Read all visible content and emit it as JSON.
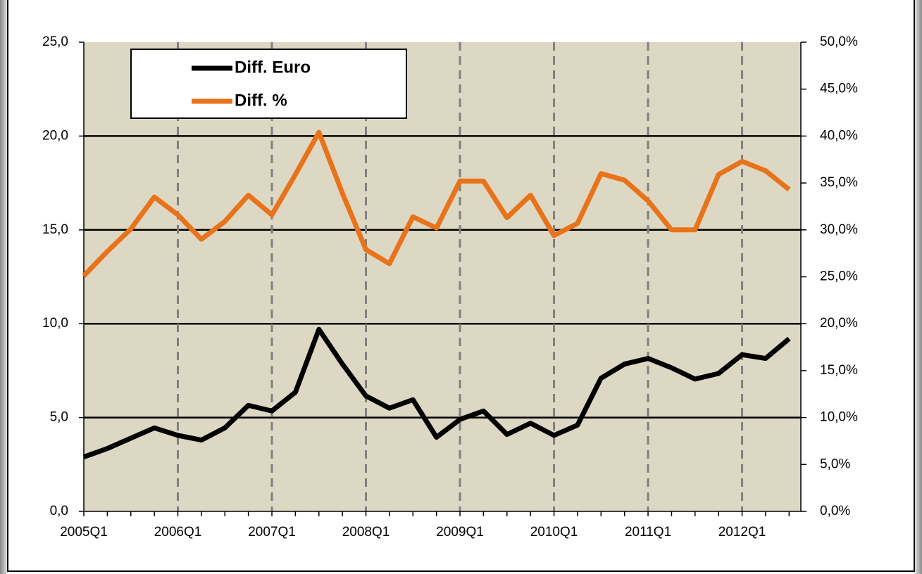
{
  "chart_data": {
    "type": "line",
    "categories": [
      "2005Q1",
      null,
      null,
      null,
      "2006Q1",
      null,
      null,
      null,
      "2007Q1",
      null,
      null,
      null,
      "2008Q1",
      null,
      null,
      null,
      "2009Q1",
      null,
      null,
      null,
      "2010Q1",
      null,
      null,
      null,
      "2011Q1",
      null,
      null,
      null,
      "2012Q1",
      null,
      null
    ],
    "series": [
      {
        "name": "Diff. Euro",
        "color": "#000000",
        "values": [
          2.9,
          3.35,
          3.9,
          4.45,
          4.05,
          3.8,
          4.45,
          5.65,
          5.35,
          6.35,
          9.7,
          7.85,
          6.15,
          5.5,
          5.95,
          3.95,
          4.9,
          5.35,
          4.1,
          4.7,
          4.05,
          4.6,
          7.1,
          7.85,
          8.15,
          7.65,
          7.05,
          7.35,
          8.35,
          8.15,
          9.2
        ]
      },
      {
        "name": "Diff. %",
        "color": "#e8731a",
        "axis": "y2",
        "values": [
          25.1,
          27.7,
          30.1,
          33.5,
          31.6,
          29.0,
          30.9,
          33.7,
          31.6,
          35.9,
          40.4,
          33.9,
          27.9,
          26.4,
          31.4,
          30.2,
          35.2,
          35.2,
          31.3,
          33.7,
          29.4,
          30.7,
          36.0,
          35.3,
          33.1,
          30.0,
          30.0,
          35.9,
          37.3,
          36.3,
          34.3
        ]
      }
    ],
    "ylim": [
      0,
      25
    ],
    "yticks": [
      {
        "value": 0,
        "label": "0,0"
      },
      {
        "value": 5,
        "label": "5,0"
      },
      {
        "value": 10,
        "label": "10,0"
      },
      {
        "value": 15,
        "label": "15,0"
      },
      {
        "value": 20,
        "label": "20,0"
      },
      {
        "value": 25,
        "label": "25,0"
      }
    ],
    "y2lim": [
      0,
      50
    ],
    "y2ticks": [
      {
        "value": 0,
        "label": "0,0%"
      },
      {
        "value": 5,
        "label": "5,0%"
      },
      {
        "value": 10,
        "label": "10,0%"
      },
      {
        "value": 15,
        "label": "15,0%"
      },
      {
        "value": 20,
        "label": "20,0%"
      },
      {
        "value": 25,
        "label": "25,0%"
      },
      {
        "value": 30,
        "label": "30,0%"
      },
      {
        "value": 35,
        "label": "35,0%"
      },
      {
        "value": 40,
        "label": "40,0%"
      },
      {
        "value": 45,
        "label": "45,0%"
      },
      {
        "value": 50,
        "label": "50,0%"
      }
    ],
    "grid": true,
    "legend": "upper left"
  }
}
